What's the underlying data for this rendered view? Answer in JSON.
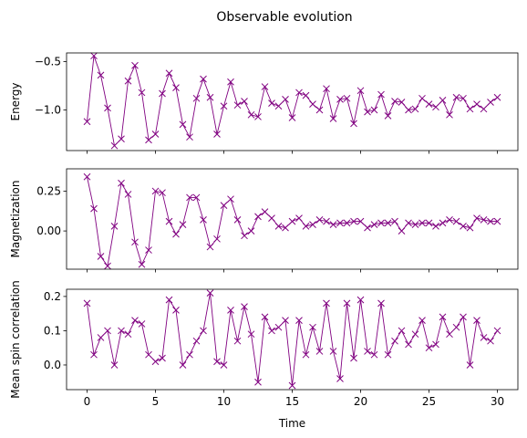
{
  "title": "Observable evolution",
  "chart_data": [
    {
      "type": "line",
      "ylabel": "Energy",
      "color": "#800080",
      "marker": "x",
      "x": [
        0,
        0.5,
        1,
        1.5,
        2,
        2.5,
        3,
        3.5,
        4,
        4.5,
        5,
        5.5,
        6,
        6.5,
        7,
        7.5,
        8,
        8.5,
        9,
        9.5,
        10,
        10.5,
        11,
        11.5,
        12,
        12.5,
        13,
        13.5,
        14,
        14.5,
        15,
        15.5,
        16,
        16.5,
        17,
        17.5,
        18,
        18.5,
        19,
        19.5,
        20,
        20.5,
        21,
        21.5,
        22,
        22.5,
        23,
        23.5,
        24,
        24.5,
        25,
        25.5,
        26,
        26.5,
        27,
        27.5,
        28,
        28.5,
        29,
        29.5,
        30
      ],
      "values": [
        -1.12,
        -0.44,
        -0.64,
        -0.98,
        -1.37,
        -1.3,
        -0.7,
        -0.54,
        -0.82,
        -1.31,
        -1.25,
        -0.83,
        -0.62,
        -0.77,
        -1.15,
        -1.28,
        -0.88,
        -0.68,
        -0.87,
        -1.25,
        -0.96,
        -0.71,
        -0.95,
        -0.91,
        -1.05,
        -1.07,
        -0.76,
        -0.93,
        -0.96,
        -0.89,
        -1.08,
        -0.82,
        -0.85,
        -0.94,
        -1.0,
        -0.78,
        -1.09,
        -0.89,
        -0.88,
        -1.14,
        -0.8,
        -1.02,
        -1.0,
        -0.84,
        -1.06,
        -0.91,
        -0.92,
        -1.0,
        -0.99,
        -0.88,
        -0.94,
        -0.97,
        -0.9,
        -1.05,
        -0.87,
        -0.88,
        -0.99,
        -0.94,
        -0.99,
        -0.92,
        -0.87
      ],
      "xlim": [
        -1.5,
        31.5
      ],
      "xticks": [
        0,
        5,
        10,
        15,
        20,
        25,
        30
      ],
      "ylim": [
        -1.42,
        -0.41
      ],
      "yticks": [
        {
          "value": -0.5,
          "label": "−0.5"
        },
        {
          "value": -1.0,
          "label": "−1.0"
        }
      ]
    },
    {
      "type": "line",
      "ylabel": "Magnetization",
      "color": "#800080",
      "marker": "x",
      "x": [
        0,
        0.5,
        1,
        1.5,
        2,
        2.5,
        3,
        3.5,
        4,
        4.5,
        5,
        5.5,
        6,
        6.5,
        7,
        7.5,
        8,
        8.5,
        9,
        9.5,
        10,
        10.5,
        11,
        11.5,
        12,
        12.5,
        13,
        13.5,
        14,
        14.5,
        15,
        15.5,
        16,
        16.5,
        17,
        17.5,
        18,
        18.5,
        19,
        19.5,
        20,
        20.5,
        21,
        21.5,
        22,
        22.5,
        23,
        23.5,
        24,
        24.5,
        25,
        25.5,
        26,
        26.5,
        27,
        27.5,
        28,
        28.5,
        29,
        29.5,
        30
      ],
      "values": [
        0.34,
        0.14,
        -0.16,
        -0.22,
        0.03,
        0.3,
        0.23,
        -0.07,
        -0.21,
        -0.12,
        0.25,
        0.24,
        0.06,
        -0.02,
        0.04,
        0.21,
        0.21,
        0.07,
        -0.1,
        -0.05,
        0.16,
        0.2,
        0.07,
        -0.03,
        0.0,
        0.09,
        0.12,
        0.08,
        0.03,
        0.02,
        0.06,
        0.08,
        0.03,
        0.04,
        0.07,
        0.06,
        0.04,
        0.05,
        0.05,
        0.06,
        0.06,
        0.02,
        0.04,
        0.05,
        0.05,
        0.06,
        0.0,
        0.05,
        0.04,
        0.05,
        0.05,
        0.03,
        0.05,
        0.07,
        0.06,
        0.03,
        0.02,
        0.08,
        0.07,
        0.06,
        0.06
      ],
      "xlim": [
        -1.5,
        31.5
      ],
      "xticks": [
        0,
        5,
        10,
        15,
        20,
        25,
        30
      ],
      "ylim": [
        -0.24,
        0.39
      ],
      "yticks": [
        0.25,
        {
          "value": 0,
          "label": "0.00"
        }
      ]
    },
    {
      "type": "line",
      "ylabel": "Mean spin correlation",
      "xlabel": "Time",
      "color": "#800080",
      "marker": "x",
      "x": [
        0,
        0.5,
        1,
        1.5,
        2,
        2.5,
        3,
        3.5,
        4,
        4.5,
        5,
        5.5,
        6,
        6.5,
        7,
        7.5,
        8,
        8.5,
        9,
        9.5,
        10,
        10.5,
        11,
        11.5,
        12,
        12.5,
        13,
        13.5,
        14,
        14.5,
        15,
        15.5,
        16,
        16.5,
        17,
        17.5,
        18,
        18.5,
        19,
        19.5,
        20,
        20.5,
        21,
        21.5,
        22,
        22.5,
        23,
        23.5,
        24,
        24.5,
        25,
        25.5,
        26,
        26.5,
        27,
        27.5,
        28,
        28.5,
        29,
        29.5,
        30
      ],
      "values": [
        0.18,
        0.03,
        0.08,
        0.1,
        0.0,
        0.1,
        0.09,
        0.13,
        0.12,
        0.03,
        0.01,
        0.02,
        0.19,
        0.16,
        0.0,
        0.03,
        0.07,
        0.1,
        0.21,
        0.01,
        0.0,
        0.16,
        0.07,
        0.17,
        0.09,
        -0.05,
        0.14,
        0.1,
        0.11,
        0.13,
        -0.06,
        0.13,
        0.03,
        0.11,
        0.04,
        0.18,
        0.04,
        -0.04,
        0.18,
        0.02,
        0.19,
        0.04,
        0.03,
        0.18,
        0.03,
        0.07,
        0.1,
        0.06,
        0.09,
        0.13,
        0.05,
        0.06,
        0.14,
        0.09,
        0.11,
        0.14,
        0.0,
        0.13,
        0.08,
        0.07,
        0.1
      ],
      "xlim": [
        -1.5,
        31.5
      ],
      "xticks": [
        0,
        5,
        10,
        15,
        20,
        25,
        30
      ],
      "ylim": [
        -0.072,
        0.221
      ],
      "yticks": [
        0.2,
        0.1,
        {
          "value": 0,
          "label": "0.0"
        }
      ]
    }
  ]
}
